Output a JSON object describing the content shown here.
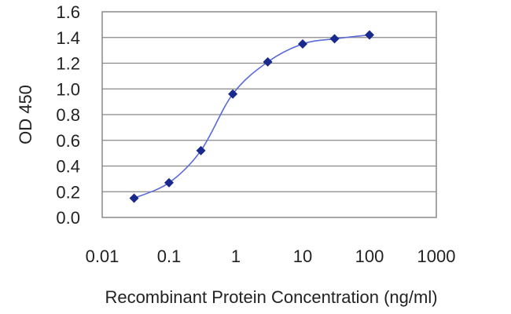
{
  "chart_data": {
    "type": "scatter",
    "title": "",
    "xlabel": "Recombinant Protein Concentration (ng/ml)",
    "ylabel": "OD 450",
    "xscale": "log",
    "xlim": [
      0.01,
      1000
    ],
    "ylim": [
      0.0,
      1.6
    ],
    "xticks": [
      "0.01",
      "0.1",
      "1",
      "10",
      "100",
      "1000"
    ],
    "xtick_values": [
      0.01,
      0.1,
      1,
      10,
      100,
      1000
    ],
    "yticks": [
      "0.0",
      "0.2",
      "0.4",
      "0.6",
      "0.8",
      "1.0",
      "1.2",
      "1.4",
      "1.6"
    ],
    "ytick_values": [
      0.0,
      0.2,
      0.4,
      0.6,
      0.8,
      1.0,
      1.2,
      1.4,
      1.6
    ],
    "grid": "horizontal",
    "legend": "none",
    "series": [
      {
        "x": [
          0.03,
          0.1,
          0.3,
          0.9,
          3,
          10,
          30,
          100
        ],
        "y": [
          0.15,
          0.27,
          0.52,
          0.96,
          1.21,
          1.35,
          1.39,
          1.42
        ],
        "marker": "diamond",
        "fit": "sigmoid curve"
      }
    ],
    "colors": {
      "marker": "#1a2a8c",
      "line": "#5a6ad8",
      "grid": "#888888",
      "frame": "#888888"
    }
  }
}
